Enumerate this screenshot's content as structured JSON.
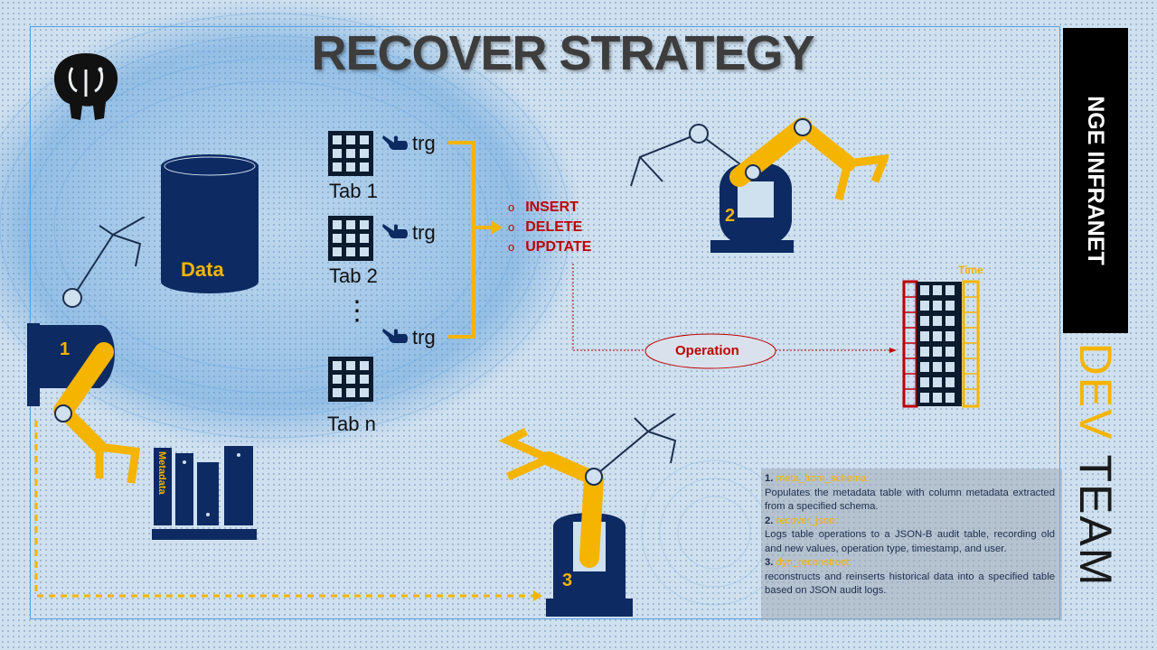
{
  "title": "RECOVER STRATEGY",
  "brand": {
    "name": "NGE INFRANET",
    "team_part1": "DEV",
    "team_part2": " TEAM"
  },
  "storage": {
    "data_label": "Data",
    "metadata_label": "Metadata"
  },
  "tables": [
    {
      "label": "Tab 1",
      "trigger": "trg"
    },
    {
      "label": "Tab 2",
      "trigger": "trg"
    },
    {
      "label": "Tab n",
      "trigger": "trg"
    }
  ],
  "ellipsis": "⋮",
  "operations": [
    "INSERT",
    "DELETE",
    "UPDTATE"
  ],
  "operation_node": "Operation",
  "time_label": "Time",
  "robots": [
    "1",
    "2",
    "3"
  ],
  "info": [
    {
      "num": "1.",
      "name": "meta_from_schema",
      "desc": "Populates the metadata table with column metadata extracted from a specified schema."
    },
    {
      "num": "2.",
      "name": "recover_json",
      "desc": "Logs table operations to a JSON-B audit table, recording old and new values, operation type, timestamp, and user."
    },
    {
      "num": "3.",
      "name": "dyn_reconstruct",
      "desc": "reconstructs and reinserts historical data into a specified table based on JSON audit logs."
    }
  ],
  "colors": {
    "accent": "#f5b400",
    "navy": "#0d2a62",
    "red": "#c00000",
    "frame": "#4fa0e6"
  }
}
